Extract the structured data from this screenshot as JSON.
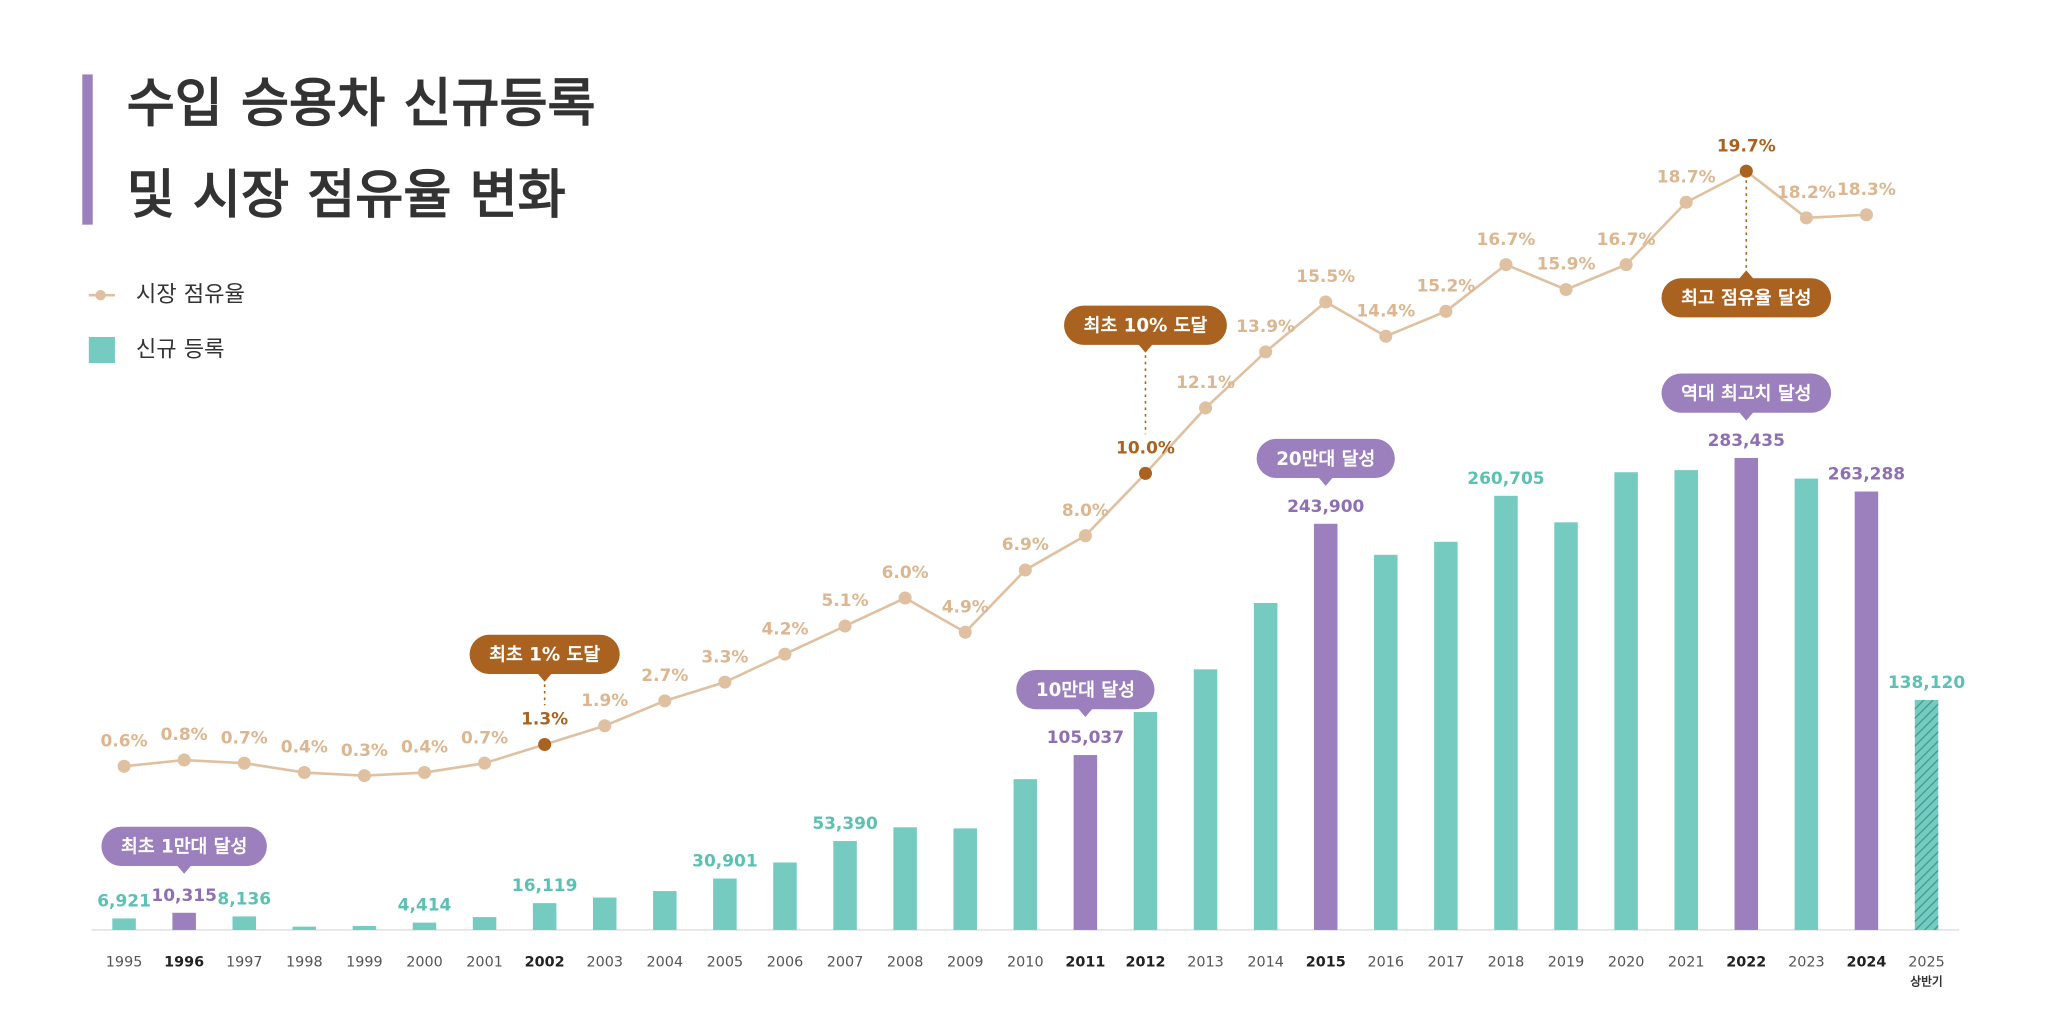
{
  "chart_data": {
    "type": "combo",
    "title": [
      "수입 승용차 신규등록",
      "및 시장 점유율 변화"
    ],
    "categories": [
      "1995",
      "1996",
      "1997",
      "1998",
      "1999",
      "2000",
      "2001",
      "2002",
      "2003",
      "2004",
      "2005",
      "2006",
      "2007",
      "2008",
      "2009",
      "2010",
      "2011",
      "2012",
      "2013",
      "2014",
      "2015",
      "2016",
      "2017",
      "2018",
      "2019",
      "2020",
      "2021",
      "2022",
      "2023",
      "2024",
      "2025"
    ],
    "sub_labels": [
      null,
      null,
      null,
      null,
      null,
      null,
      null,
      null,
      null,
      null,
      null,
      null,
      null,
      null,
      null,
      null,
      null,
      null,
      null,
      null,
      null,
      null,
      null,
      null,
      null,
      null,
      null,
      null,
      null,
      null,
      "상반기"
    ],
    "emphasis": [
      false,
      true,
      false,
      false,
      false,
      false,
      false,
      true,
      false,
      false,
      false,
      false,
      false,
      false,
      false,
      false,
      true,
      true,
      false,
      false,
      true,
      false,
      false,
      false,
      false,
      false,
      false,
      true,
      false,
      true,
      false
    ],
    "ylim": [
      0,
      480000
    ],
    "y2lim": [
      0,
      21
    ],
    "hatch_last": true,
    "legend": "top-left",
    "series": [
      {
        "name": "신규 등록",
        "type": "bar",
        "color": "#76cbc1",
        "highlight_color": "#9c80bd",
        "highlight": [
          false,
          true,
          false,
          false,
          false,
          false,
          false,
          false,
          false,
          false,
          false,
          false,
          false,
          false,
          false,
          false,
          true,
          false,
          false,
          false,
          true,
          false,
          false,
          false,
          false,
          false,
          false,
          true,
          false,
          true,
          false
        ],
        "values": [
          6921,
          10315,
          8136,
          2000,
          2400,
          4414,
          7747,
          16119,
          19481,
          23345,
          30901,
          40530,
          53390,
          61648,
          60993,
          90562,
          105037,
          130858,
          156497,
          196359,
          243900,
          225279,
          233088,
          260705,
          244780,
          274859,
          276146,
          283435,
          271034,
          263288,
          138120
        ],
        "value_labels": [
          "6,921",
          "10,315",
          "8,136",
          null,
          null,
          "4,414",
          null,
          "16,119",
          null,
          null,
          "30,901",
          null,
          "53,390",
          null,
          null,
          null,
          "105,037",
          null,
          null,
          null,
          "243,900",
          null,
          null,
          "260,705",
          null,
          null,
          null,
          "283,435",
          null,
          "263,288",
          "138,120"
        ]
      },
      {
        "name": "시장 점유율",
        "type": "line",
        "axis": "y2",
        "color": "#dfc1a1",
        "label_color": "#dcb690",
        "highlight_color": "#a9621f",
        "highlight": [
          false,
          false,
          false,
          false,
          false,
          false,
          false,
          true,
          false,
          false,
          false,
          false,
          false,
          false,
          false,
          false,
          false,
          true,
          false,
          false,
          false,
          false,
          false,
          false,
          false,
          false,
          false,
          true,
          false,
          false,
          false
        ],
        "values": [
          0.6,
          0.8,
          0.7,
          0.4,
          0.3,
          0.4,
          0.7,
          1.3,
          1.9,
          2.7,
          3.3,
          4.2,
          5.1,
          6.0,
          4.9,
          6.9,
          8.0,
          10.0,
          12.1,
          13.9,
          15.5,
          14.4,
          15.2,
          16.7,
          15.9,
          16.7,
          18.7,
          19.7,
          18.2,
          18.3,
          null
        ],
        "value_labels": [
          "0.6%",
          "0.8%",
          "0.7%",
          "0.4%",
          "0.3%",
          "0.4%",
          "0.7%",
          "1.3%",
          "1.9%",
          "2.7%",
          "3.3%",
          "4.2%",
          "5.1%",
          "6.0%",
          "4.9%",
          "6.9%",
          "8.0%",
          "10.0%",
          "12.1%",
          "13.9%",
          "15.5%",
          "14.4%",
          "15.2%",
          "16.7%",
          "15.9%",
          "16.7%",
          "18.7%",
          "19.7%",
          "18.2%",
          "18.3%",
          null
        ]
      }
    ],
    "annotations": [
      "최초 1만대 달성",
      "최초 1% 도달",
      "10만대 달성",
      "최초 10% 도달",
      "20만대 달성",
      "역대 최고치 달성",
      "최고 점유율 달성"
    ]
  }
}
